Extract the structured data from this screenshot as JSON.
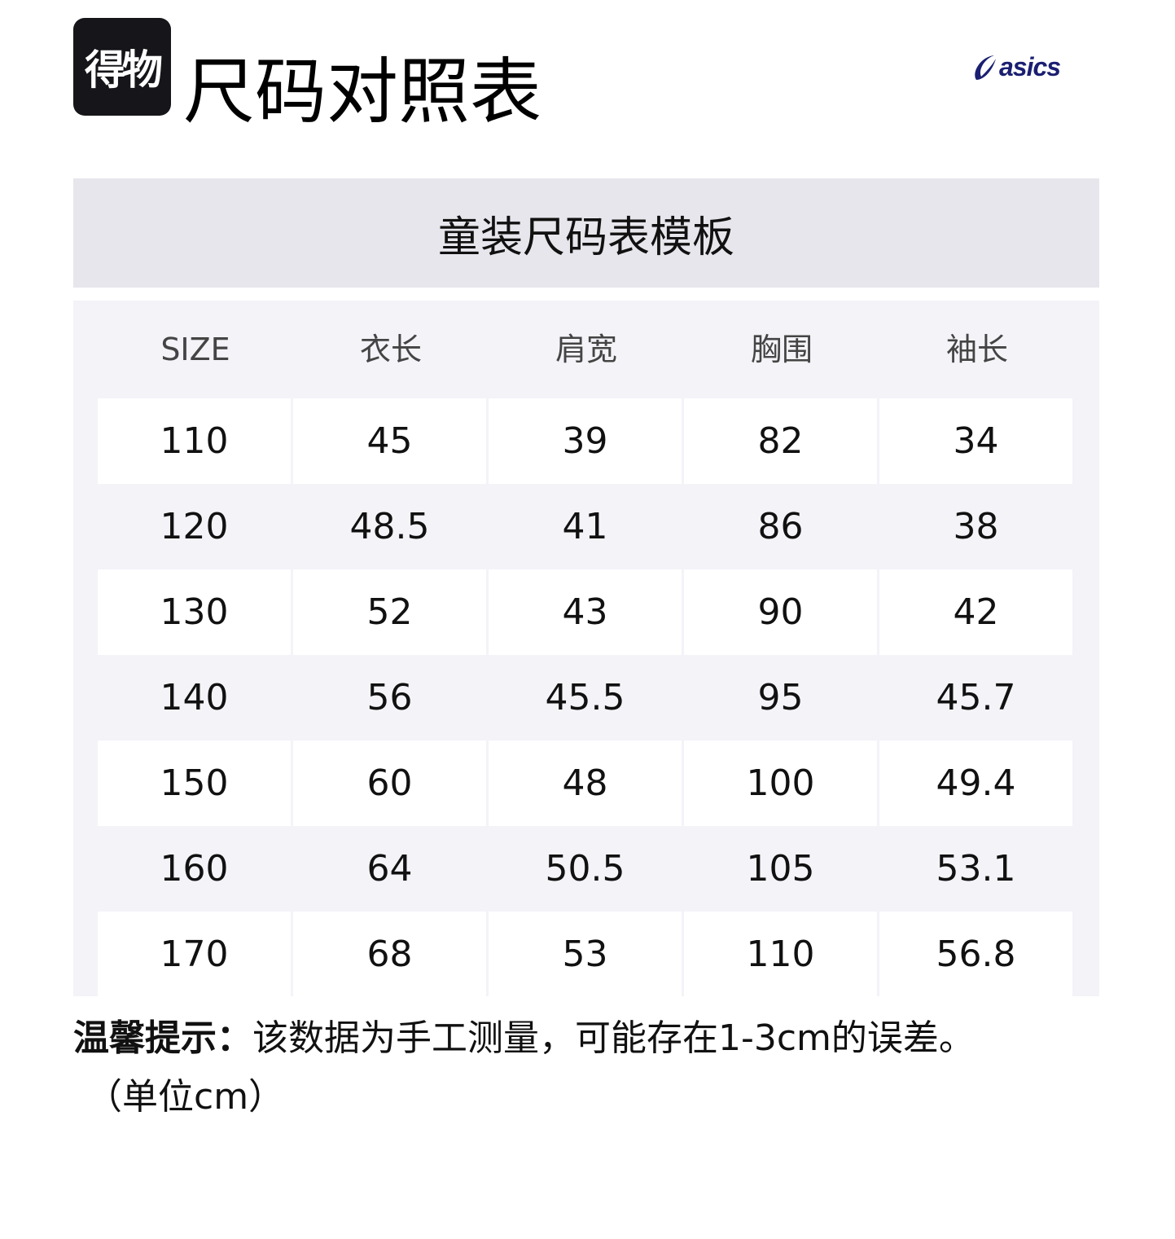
{
  "header": {
    "dewu_logo_text": "得物",
    "title": "尺码对照表",
    "asics_logo_text": "asics",
    "brand_color": "#1a1f71"
  },
  "table": {
    "caption": "童装尺码表模板",
    "columns": [
      "SIZE",
      "衣长",
      "肩宽",
      "胸围",
      "袖长"
    ],
    "rows": [
      [
        "110",
        "45",
        "39",
        "82",
        "34"
      ],
      [
        "120",
        "48.5",
        "41",
        "86",
        "38"
      ],
      [
        "130",
        "52",
        "43",
        "90",
        "42"
      ],
      [
        "140",
        "56",
        "45.5",
        "95",
        "45.7"
      ],
      [
        "150",
        "60",
        "48",
        "100",
        "49.4"
      ],
      [
        "160",
        "64",
        "50.5",
        "105",
        "53.1"
      ],
      [
        "170",
        "68",
        "53",
        "110",
        "56.8"
      ]
    ]
  },
  "note": {
    "label": "温馨提示：",
    "text": "该数据为手工测量，可能存在1-3cm的误差。",
    "unit": "（单位cm）"
  }
}
